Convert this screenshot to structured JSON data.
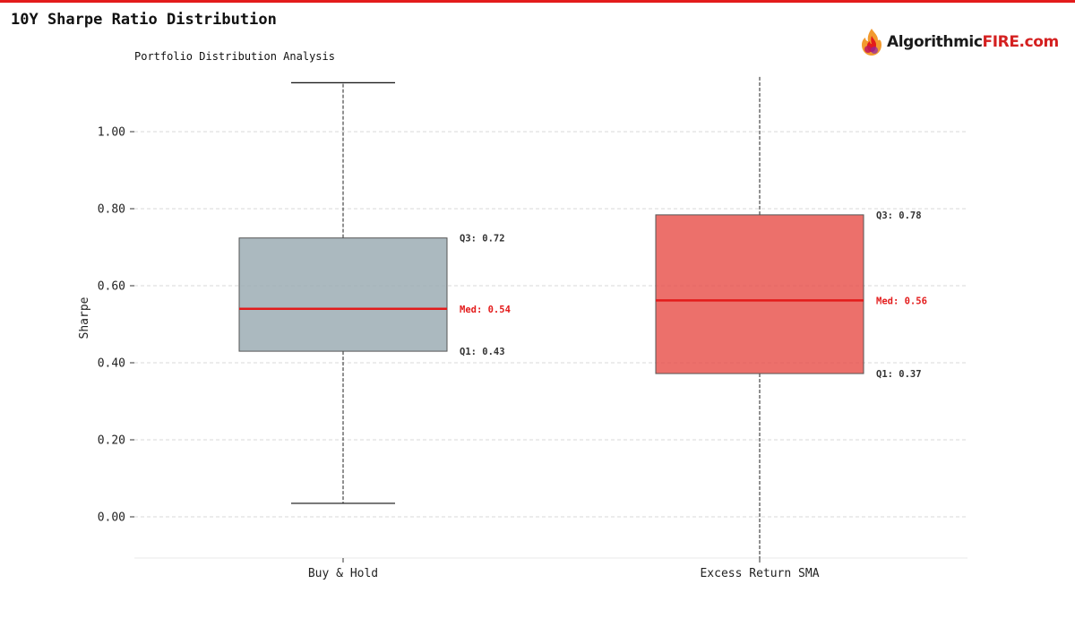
{
  "page": {
    "title": "10Y Sharpe Ratio Distribution",
    "accent_color": "#e31b1b"
  },
  "logo": {
    "icon": "flame-brain-icon",
    "text_part1": "Algorithmic",
    "text_part2": "FIRE",
    "text_part3": ".com"
  },
  "chart_data": {
    "type": "box",
    "subtitle": "Portfolio Distribution Analysis",
    "ylabel": "Sharpe",
    "ylim": [
      -0.107,
      1.15
    ],
    "yticks": [
      0.0,
      0.2,
      0.4,
      0.6,
      0.8,
      1.0
    ],
    "ytick_labels": [
      "0.00",
      "0.20",
      "0.40",
      "0.60",
      "0.80",
      "1.00"
    ],
    "grid": true,
    "categories": [
      "Buy & Hold",
      "Excess Return SMA"
    ],
    "boxes": [
      {
        "name": "Buy & Hold",
        "whisker_low": 0.035,
        "q1": 0.43,
        "median": 0.54,
        "q3": 0.724,
        "whisker_high": 1.127,
        "fill": "#98a9b1",
        "show_caps": true,
        "labels": {
          "q3": "Q3: 0.72",
          "median": "Med: 0.54",
          "q1": "Q1: 0.43"
        }
      },
      {
        "name": "Excess Return SMA",
        "whisker_low": -0.107,
        "q1": 0.372,
        "median": 0.562,
        "q3": 0.784,
        "whisker_high": 1.15,
        "fill": "#e8504a",
        "show_caps": false,
        "labels": {
          "q3": "Q3: 0.78",
          "median": "Med: 0.56",
          "q1": "Q1: 0.37"
        }
      }
    ],
    "median_color": "#e31b1b"
  }
}
